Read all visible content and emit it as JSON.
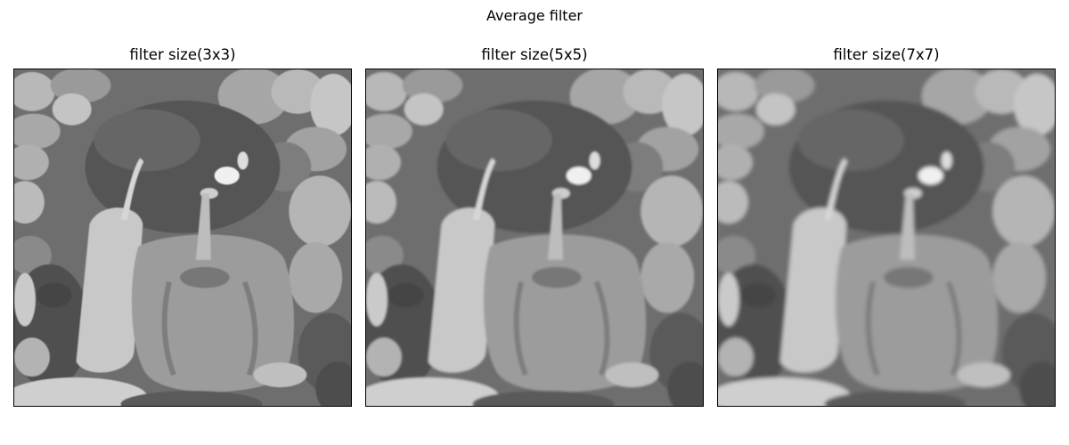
{
  "figure": {
    "title": "Average filter",
    "panels": [
      {
        "title": "filter size(3x3)",
        "image": "grayscale peppers photo, mild blur",
        "blur": 0.6
      },
      {
        "title": "filter size(5x5)",
        "image": "grayscale peppers photo, medium blur",
        "blur": 1.4
      },
      {
        "title": "filter size(7x7)",
        "image": "grayscale peppers photo, strong blur",
        "blur": 2.2
      }
    ]
  }
}
